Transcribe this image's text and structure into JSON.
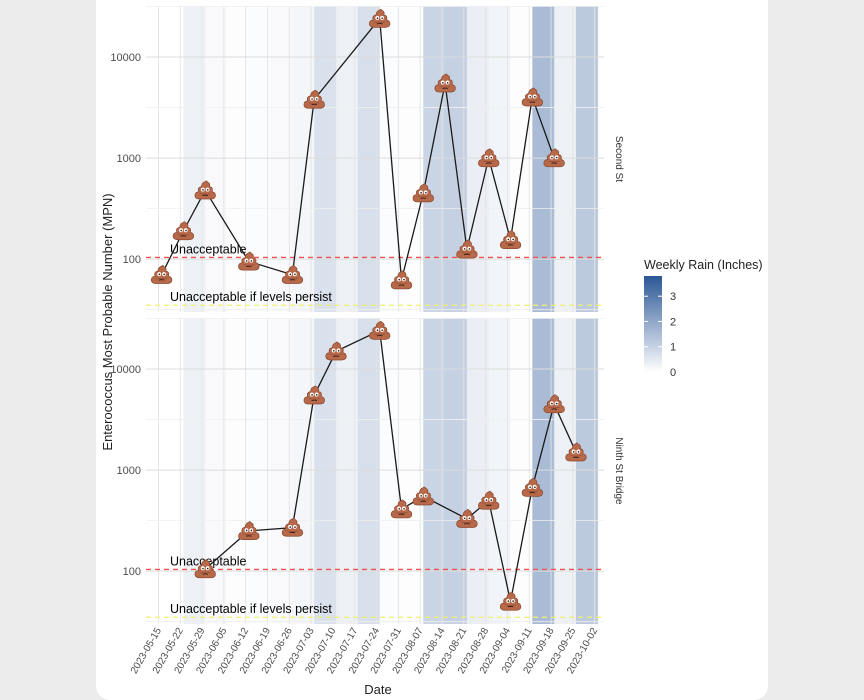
{
  "chart_data": {
    "type": "line",
    "xlabel": "Date",
    "ylabel": "Enterococcus Most Probable Number (MPN)",
    "yscale": "log10",
    "ylim": [
      30,
      32000
    ],
    "y_ticks": [
      100,
      1000,
      10000
    ],
    "x_ticks": [
      "2023-05-15",
      "2023-05-22",
      "2023-05-29",
      "2023-06-05",
      "2023-06-12",
      "2023-06-19",
      "2023-06-26",
      "2023-07-03",
      "2023-07-10",
      "2023-07-17",
      "2023-07-24",
      "2023-07-31",
      "2023-08-07",
      "2023-08-14",
      "2023-08-21",
      "2023-08-28",
      "2023-09-04",
      "2023-09-11",
      "2023-09-18",
      "2023-09-25",
      "2023-10-02"
    ],
    "x_range": [
      "2023-05-11",
      "2023-10-05"
    ],
    "legend": {
      "title": "Weekly Rain (Inches)",
      "ticks": [
        0,
        1,
        2,
        3
      ],
      "min": 0,
      "max": 3.8,
      "placement": "right",
      "low_color": "#ffffff",
      "high_color": "#2b5796"
    },
    "rain_weeks": [
      {
        "start": "2023-05-23",
        "end": "2023-05-30",
        "rain": 0.4
      },
      {
        "start": "2023-05-30",
        "end": "2023-06-06",
        "rain": 0.15
      },
      {
        "start": "2023-06-06",
        "end": "2023-06-13",
        "rain": 0.05
      },
      {
        "start": "2023-06-13",
        "end": "2023-06-20",
        "rain": 0.1
      },
      {
        "start": "2023-06-20",
        "end": "2023-06-27",
        "rain": 0.15
      },
      {
        "start": "2023-06-27",
        "end": "2023-07-04",
        "rain": 0.25
      },
      {
        "start": "2023-07-04",
        "end": "2023-07-11",
        "rain": 0.85
      },
      {
        "start": "2023-07-11",
        "end": "2023-07-18",
        "rain": 0.4
      },
      {
        "start": "2023-07-18",
        "end": "2023-07-25",
        "rain": 0.9
      },
      {
        "start": "2023-07-25",
        "end": "2023-08-01",
        "rain": 0.1
      },
      {
        "start": "2023-08-01",
        "end": "2023-08-08",
        "rain": 0.05
      },
      {
        "start": "2023-08-08",
        "end": "2023-08-15",
        "rain": 1.2
      },
      {
        "start": "2023-08-15",
        "end": "2023-08-22",
        "rain": 1.3
      },
      {
        "start": "2023-08-22",
        "end": "2023-08-29",
        "rain": 0.45
      },
      {
        "start": "2023-08-29",
        "end": "2023-09-05",
        "rain": 0.3
      },
      {
        "start": "2023-09-05",
        "end": "2023-09-12",
        "rain": 0.05
      },
      {
        "start": "2023-09-12",
        "end": "2023-09-19",
        "rain": 1.9
      },
      {
        "start": "2023-09-19",
        "end": "2023-09-26",
        "rain": 0.4
      },
      {
        "start": "2023-09-26",
        "end": "2023-10-03",
        "rain": 1.5
      }
    ],
    "thresholds": [
      {
        "label": "Unacceptable",
        "value": 104,
        "color": "#ef5350"
      },
      {
        "label": "Unacceptable if levels persist",
        "value": 35,
        "color": "#f2ee6e"
      }
    ],
    "panels": [
      {
        "name": "Second St",
        "points": [
          {
            "date": "2023-05-16",
            "value": 70
          },
          {
            "date": "2023-05-23",
            "value": 190
          },
          {
            "date": "2023-05-30",
            "value": 480
          },
          {
            "date": "2023-06-13",
            "value": 95
          },
          {
            "date": "2023-06-27",
            "value": 70
          },
          {
            "date": "2023-07-04",
            "value": 3800
          },
          {
            "date": "2023-07-25",
            "value": 24000
          },
          {
            "date": "2023-08-01",
            "value": 62
          },
          {
            "date": "2023-08-08",
            "value": 450
          },
          {
            "date": "2023-08-15",
            "value": 5500
          },
          {
            "date": "2023-08-22",
            "value": 125
          },
          {
            "date": "2023-08-29",
            "value": 1000
          },
          {
            "date": "2023-09-05",
            "value": 155
          },
          {
            "date": "2023-09-12",
            "value": 4000
          },
          {
            "date": "2023-09-19",
            "value": 1000
          }
        ]
      },
      {
        "name": "Ninth St Bridge",
        "points": [
          {
            "date": "2023-05-30",
            "value": 105
          },
          {
            "date": "2023-06-13",
            "value": 250
          },
          {
            "date": "2023-06-27",
            "value": 270
          },
          {
            "date": "2023-07-04",
            "value": 5500
          },
          {
            "date": "2023-07-11",
            "value": 15000
          },
          {
            "date": "2023-07-25",
            "value": 24000
          },
          {
            "date": "2023-08-01",
            "value": 410
          },
          {
            "date": "2023-08-08",
            "value": 550
          },
          {
            "date": "2023-08-22",
            "value": 330
          },
          {
            "date": "2023-08-29",
            "value": 500
          },
          {
            "date": "2023-09-05",
            "value": 50
          },
          {
            "date": "2023-09-12",
            "value": 670
          },
          {
            "date": "2023-09-19",
            "value": 4500
          },
          {
            "date": "2023-09-26",
            "value": 1500
          }
        ]
      }
    ]
  }
}
